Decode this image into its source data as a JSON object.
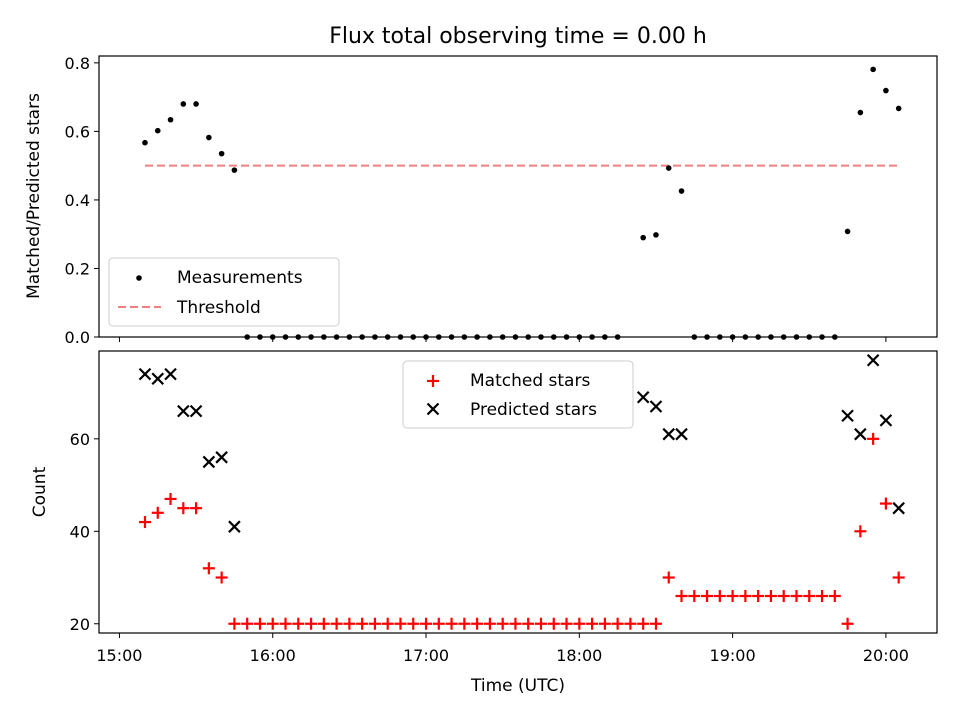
{
  "chart_data": [
    {
      "type": "scatter",
      "title": "Flux total observing time = 0.00 h",
      "xlabel": "",
      "ylabel": "Matched/Predicted stars",
      "ylim": [
        0,
        0.82
      ],
      "yticks": [
        "0.0",
        "0.2",
        "0.4",
        "0.6",
        "0.8"
      ],
      "legend": {
        "placement": "lower-left",
        "entries": [
          "Measurements",
          "Threshold"
        ]
      },
      "series": [
        {
          "name": "Measurements",
          "marker": "dot",
          "color": "#000000",
          "points": [
            [
              "15:10",
              0.567
            ],
            [
              "15:15",
              0.602
            ],
            [
              "15:20",
              0.634
            ],
            [
              "15:25",
              0.68
            ],
            [
              "15:30",
              0.68
            ],
            [
              "15:35",
              0.582
            ],
            [
              "15:40",
              0.535
            ],
            [
              "15:45",
              0.487
            ],
            [
              "15:50",
              0.0
            ],
            [
              "15:55",
              0.0
            ],
            [
              "16:00",
              0.0
            ],
            [
              "16:05",
              0.0
            ],
            [
              "16:10",
              0.0
            ],
            [
              "16:15",
              0.0
            ],
            [
              "16:20",
              0.0
            ],
            [
              "16:25",
              0.0
            ],
            [
              "16:30",
              0.0
            ],
            [
              "16:35",
              0.0
            ],
            [
              "16:40",
              0.0
            ],
            [
              "16:45",
              0.0
            ],
            [
              "16:50",
              0.0
            ],
            [
              "16:55",
              0.0
            ],
            [
              "17:00",
              0.0
            ],
            [
              "17:05",
              0.0
            ],
            [
              "17:10",
              0.0
            ],
            [
              "17:15",
              0.0
            ],
            [
              "17:20",
              0.0
            ],
            [
              "17:25",
              0.0
            ],
            [
              "17:30",
              0.0
            ],
            [
              "17:35",
              0.0
            ],
            [
              "17:40",
              0.0
            ],
            [
              "17:45",
              0.0
            ],
            [
              "17:50",
              0.0
            ],
            [
              "17:55",
              0.0
            ],
            [
              "18:00",
              0.0
            ],
            [
              "18:05",
              0.0
            ],
            [
              "18:10",
              0.0
            ],
            [
              "18:15",
              0.0
            ],
            [
              "18:25",
              0.29
            ],
            [
              "18:30",
              0.298
            ],
            [
              "18:35",
              0.493
            ],
            [
              "18:40",
              0.426
            ],
            [
              "18:45",
              0.0
            ],
            [
              "18:50",
              0.0
            ],
            [
              "18:55",
              0.0
            ],
            [
              "19:00",
              0.0
            ],
            [
              "19:05",
              0.0
            ],
            [
              "19:10",
              0.0
            ],
            [
              "19:15",
              0.0
            ],
            [
              "19:20",
              0.0
            ],
            [
              "19:25",
              0.0
            ],
            [
              "19:30",
              0.0
            ],
            [
              "19:35",
              0.0
            ],
            [
              "19:40",
              0.0
            ],
            [
              "19:45",
              0.308
            ],
            [
              "19:50",
              0.655
            ],
            [
              "19:55",
              0.781
            ],
            [
              "20:00",
              0.719
            ],
            [
              "20:05",
              0.667
            ]
          ]
        },
        {
          "name": "Threshold",
          "marker": "dashed-line",
          "color": "#f08080",
          "points": [
            [
              "15:10",
              0.5
            ],
            [
              "20:05",
              0.5
            ]
          ]
        }
      ]
    },
    {
      "type": "scatter",
      "title": "",
      "xlabel": "Time (UTC)",
      "ylabel": "Count",
      "ylim": [
        18,
        79
      ],
      "yticks": [
        "20",
        "40",
        "60"
      ],
      "xlim": [
        "14:52",
        "20:20"
      ],
      "xticks": [
        "15:00",
        "16:00",
        "17:00",
        "18:00",
        "19:00",
        "20:00"
      ],
      "legend": {
        "placement": "upper-center",
        "entries": [
          "Matched stars",
          "Predicted stars"
        ]
      },
      "series": [
        {
          "name": "Matched stars",
          "marker": "plus",
          "color": "#ff0000",
          "points": [
            [
              "15:10",
              42
            ],
            [
              "15:15",
              44
            ],
            [
              "15:20",
              47
            ],
            [
              "15:25",
              45
            ],
            [
              "15:30",
              45
            ],
            [
              "15:35",
              32
            ],
            [
              "15:40",
              30
            ],
            [
              "15:45",
              20
            ],
            [
              "15:50",
              20
            ],
            [
              "15:55",
              20
            ],
            [
              "16:00",
              20
            ],
            [
              "16:05",
              20
            ],
            [
              "16:10",
              20
            ],
            [
              "16:15",
              20
            ],
            [
              "16:20",
              20
            ],
            [
              "16:25",
              20
            ],
            [
              "16:30",
              20
            ],
            [
              "16:35",
              20
            ],
            [
              "16:40",
              20
            ],
            [
              "16:45",
              20
            ],
            [
              "16:50",
              20
            ],
            [
              "16:55",
              20
            ],
            [
              "17:00",
              20
            ],
            [
              "17:05",
              20
            ],
            [
              "17:10",
              20
            ],
            [
              "17:15",
              20
            ],
            [
              "17:20",
              20
            ],
            [
              "17:25",
              20
            ],
            [
              "17:30",
              20
            ],
            [
              "17:35",
              20
            ],
            [
              "17:40",
              20
            ],
            [
              "17:45",
              20
            ],
            [
              "17:50",
              20
            ],
            [
              "17:55",
              20
            ],
            [
              "18:00",
              20
            ],
            [
              "18:05",
              20
            ],
            [
              "18:10",
              20
            ],
            [
              "18:15",
              20
            ],
            [
              "18:20",
              20
            ],
            [
              "18:25",
              20
            ],
            [
              "18:30",
              20
            ],
            [
              "18:35",
              30
            ],
            [
              "18:40",
              26
            ],
            [
              "18:45",
              26
            ],
            [
              "18:50",
              26
            ],
            [
              "18:55",
              26
            ],
            [
              "19:00",
              26
            ],
            [
              "19:05",
              26
            ],
            [
              "19:10",
              26
            ],
            [
              "19:15",
              26
            ],
            [
              "19:20",
              26
            ],
            [
              "19:25",
              26
            ],
            [
              "19:30",
              26
            ],
            [
              "19:35",
              26
            ],
            [
              "19:40",
              26
            ],
            [
              "19:45",
              20
            ],
            [
              "19:50",
              40
            ],
            [
              "19:55",
              60
            ],
            [
              "20:00",
              46
            ],
            [
              "20:05",
              30
            ]
          ]
        },
        {
          "name": "Predicted stars",
          "marker": "x",
          "color": "#000000",
          "points": [
            [
              "15:10",
              74
            ],
            [
              "15:15",
              73
            ],
            [
              "15:20",
              74
            ],
            [
              "15:25",
              66
            ],
            [
              "15:30",
              66
            ],
            [
              "15:35",
              55
            ],
            [
              "15:40",
              56
            ],
            [
              "15:45",
              41
            ],
            [
              "18:25",
              69
            ],
            [
              "18:30",
              67
            ],
            [
              "18:35",
              61
            ],
            [
              "18:40",
              61
            ],
            [
              "19:45",
              65
            ],
            [
              "19:50",
              61
            ],
            [
              "19:55",
              77
            ],
            [
              "20:00",
              64
            ],
            [
              "20:05",
              45
            ]
          ]
        }
      ]
    }
  ]
}
